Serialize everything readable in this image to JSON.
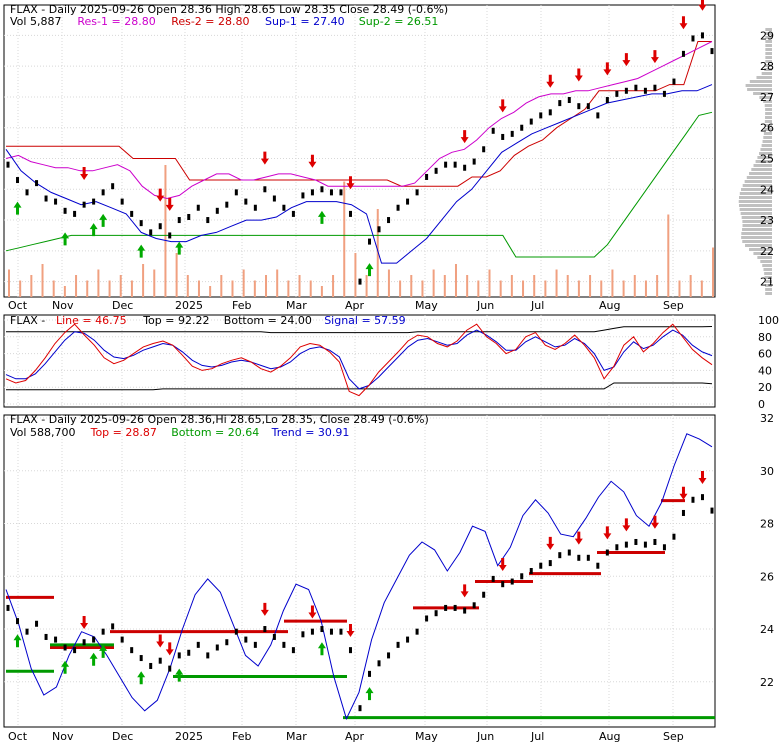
{
  "colors": {
    "resistance": "#cc0000",
    "support": "#009900",
    "sup1": "#0000cc",
    "res_line": "#cc00cc",
    "volume": "#f0a080",
    "profile": "#c0c0c0",
    "down_arrow": "#dd0000",
    "up_arrow": "#00aa00",
    "signal": "#dd0000",
    "line": "#000000",
    "trend": "#0000cc"
  },
  "chart_data": [
    {
      "type": "line",
      "title": "FLAX - Daily 2025-09-26 Open 28.36   High 28.65   Low 28.35   Close 28.49 (-0.6%)",
      "legend": [
        {
          "label": "Vol 5,887",
          "color": "#000000"
        },
        {
          "label": "Res-1 = 28.80",
          "color": "#cc00cc"
        },
        {
          "label": "Res-2 = 28.80",
          "color": "#cc0000"
        },
        {
          "label": "Sup-1 = 27.40",
          "color": "#0000cc"
        },
        {
          "label": "Sup-2 = 26.51",
          "color": "#009900"
        }
      ],
      "x_months": [
        "Oct",
        "Nov",
        "Dec",
        "2025",
        "Feb",
        "Mar",
        "Apr",
        "May",
        "Jun",
        "Jul",
        "Aug",
        "Sep"
      ],
      "y_ticks": [
        "21",
        "22",
        "23",
        "24",
        "25",
        "26",
        "27",
        "28",
        "29"
      ],
      "ylim": [
        20.5,
        29.5
      ],
      "close_series": [
        24.8,
        24.3,
        23.9,
        24.2,
        23.7,
        23.6,
        23.3,
        23.2,
        23.5,
        23.6,
        23.9,
        24.1,
        23.6,
        23.2,
        22.9,
        22.6,
        22.8,
        22.5,
        23.0,
        23.1,
        23.4,
        23.0,
        23.3,
        23.5,
        23.9,
        23.6,
        23.4,
        24.0,
        23.7,
        23.4,
        23.2,
        23.8,
        23.9,
        24.0,
        23.9,
        23.9,
        23.2,
        21.0,
        22.3,
        22.7,
        23.0,
        23.4,
        23.6,
        23.9,
        24.4,
        24.6,
        24.8,
        24.8,
        24.7,
        24.9,
        25.3,
        25.9,
        25.7,
        25.8,
        26.0,
        26.2,
        26.4,
        26.5,
        26.8,
        26.9,
        26.7,
        26.7,
        26.4,
        26.9,
        27.1,
        27.2,
        27.3,
        27.2,
        27.3,
        27.1,
        27.5,
        28.4,
        28.9,
        29.0,
        28.49
      ],
      "res1_series": [
        25.0,
        25.1,
        24.9,
        24.8,
        24.7,
        24.7,
        24.6,
        24.6,
        24.7,
        24.8,
        24.6,
        24.1,
        23.8,
        23.7,
        23.8,
        24.1,
        24.3,
        24.5,
        24.5,
        24.3,
        24.3,
        24.4,
        24.5,
        24.5,
        24.4,
        24.3,
        24.1,
        24.1,
        24.1,
        24.1,
        24.1,
        24.1,
        24.1,
        24.2,
        24.6,
        25.0,
        25.2,
        25.3,
        25.6,
        26.0,
        26.3,
        26.5,
        26.8,
        27.0,
        27.1,
        27.1,
        27.2,
        27.2,
        27.3,
        27.4,
        27.5,
        27.6,
        27.8,
        28.0,
        28.2,
        28.4,
        28.6,
        28.8
      ],
      "sup1_series": [
        25.3,
        24.6,
        24.2,
        23.9,
        23.7,
        23.5,
        23.6,
        23.4,
        23.2,
        22.6,
        22.4,
        22.3,
        22.3,
        22.5,
        22.6,
        22.8,
        23.0,
        23.0,
        23.1,
        23.4,
        23.6,
        23.6,
        23.6,
        23.5,
        23.2,
        21.6,
        21.6,
        22.0,
        22.4,
        23.0,
        23.6,
        24.0,
        24.6,
        25.2,
        25.5,
        25.8,
        26.0,
        26.2,
        26.4,
        26.6,
        26.8,
        26.9,
        27.0,
        27.1,
        27.1,
        27.2,
        27.2,
        27.4
      ],
      "volume_series": [
        0.5,
        0.3,
        0.4,
        0.6,
        0.3,
        0.2,
        0.4,
        0.3,
        0.5,
        0.3,
        0.4,
        0.3,
        0.6,
        0.5,
        2.4,
        0.8,
        0.4,
        0.3,
        0.2,
        0.4,
        0.3,
        0.5,
        0.3,
        0.4,
        0.5,
        0.3,
        0.4,
        0.3,
        0.2,
        0.4,
        2.1,
        0.8,
        0.4,
        1.6,
        0.5,
        0.3,
        0.4,
        0.3,
        0.5,
        0.4,
        0.6,
        0.4,
        0.3,
        0.5,
        0.3,
        0.4,
        0.3,
        0.4,
        0.3,
        0.5,
        0.4,
        0.3,
        0.4,
        0.3,
        0.5,
        0.3,
        0.4,
        0.3,
        0.4,
        1.5,
        0.3,
        0.4,
        0.3,
        0.9
      ]
    },
    {
      "type": "line",
      "title": "FLAX - Line = 46.75, Top = 92.22, Bottom = 24.00, Signal = 57.59",
      "legend": [
        {
          "label": "Line = 46.75",
          "color": "#dd0000"
        },
        {
          "label": "Top = 92.22",
          "color": "#000000"
        },
        {
          "label": "Bottom = 24.00",
          "color": "#000000"
        },
        {
          "label": "Signal = 57.59",
          "color": "#0000cc"
        }
      ],
      "y_ticks": [
        "0",
        "20",
        "40",
        "60",
        "80",
        "100"
      ],
      "ylim": [
        0,
        100
      ],
      "line_series": [
        30,
        25,
        28,
        40,
        55,
        72,
        85,
        95,
        82,
        70,
        55,
        48,
        52,
        60,
        68,
        72,
        75,
        70,
        58,
        45,
        40,
        42,
        48,
        52,
        55,
        50,
        42,
        38,
        45,
        55,
        68,
        72,
        70,
        62,
        50,
        15,
        10,
        22,
        38,
        50,
        62,
        75,
        82,
        80,
        72,
        68,
        75,
        88,
        95,
        80,
        72,
        60,
        65,
        80,
        85,
        70,
        65,
        72,
        82,
        70,
        55,
        30,
        45,
        70,
        80,
        62,
        72,
        85,
        95,
        80,
        65,
        55,
        46.75
      ],
      "signal_series": [
        35,
        30,
        30,
        36,
        48,
        62,
        76,
        86,
        84,
        76,
        64,
        56,
        54,
        58,
        64,
        68,
        72,
        70,
        62,
        52,
        46,
        44,
        46,
        50,
        52,
        50,
        46,
        42,
        44,
        50,
        60,
        66,
        68,
        64,
        56,
        30,
        18,
        22,
        32,
        44,
        56,
        68,
        76,
        78,
        74,
        70,
        72,
        82,
        88,
        82,
        74,
        64,
        64,
        74,
        80,
        74,
        68,
        70,
        78,
        72,
        60,
        40,
        44,
        62,
        74,
        66,
        70,
        80,
        88,
        82,
        70,
        62,
        57.59
      ],
      "top_series": [
        86,
        86,
        86,
        86,
        86,
        86,
        86,
        86,
        86,
        86,
        86,
        86,
        86,
        86,
        86,
        86,
        86,
        86,
        86,
        86,
        86,
        86,
        86,
        86,
        86,
        86,
        86,
        85,
        85,
        85,
        85,
        85,
        85,
        85,
        85,
        85,
        85,
        85,
        85,
        85,
        85,
        85,
        86,
        86,
        86,
        86,
        86,
        86,
        86,
        86,
        86,
        86,
        86,
        86,
        86,
        86,
        86,
        86,
        86,
        86,
        86,
        88,
        90,
        92,
        92,
        92,
        92,
        92,
        92,
        92,
        92,
        92,
        92.22
      ],
      "bottom_series": [
        17,
        17,
        17,
        17,
        17,
        17,
        17,
        17,
        17,
        17,
        17,
        17,
        17,
        17,
        17,
        17,
        18,
        18,
        18,
        18,
        18,
        18,
        18,
        18,
        18,
        18,
        18,
        18,
        18,
        18,
        18,
        18,
        18,
        18,
        18,
        18,
        18,
        18,
        18,
        18,
        18,
        18,
        18,
        18,
        18,
        18,
        18,
        18,
        18,
        18,
        18,
        18,
        18,
        18,
        18,
        18,
        18,
        18,
        18,
        18,
        18,
        18,
        25,
        25,
        25,
        25,
        25,
        25,
        25,
        25,
        25,
        25,
        24
      ]
    },
    {
      "type": "line",
      "title": "FLAX - Daily 2025-09-26 Open 28.36,Hi 28.65,Lo 28.35, Close 28.49 (-0.6%)",
      "legend": [
        {
          "label": "Vol 588,700",
          "color": "#000000"
        },
        {
          "label": "Top = 28.87",
          "color": "#dd0000"
        },
        {
          "label": "Bottom = 20.64",
          "color": "#009900"
        },
        {
          "label": "Trend = 30.91",
          "color": "#0000cc"
        }
      ],
      "y_ticks": [
        "22",
        "24",
        "26",
        "28",
        "30",
        "32"
      ],
      "ylim": [
        20.4,
        32
      ],
      "trend_series": [
        25.5,
        24.2,
        22.5,
        21.5,
        21.8,
        23.0,
        23.9,
        23.7,
        23.0,
        22.2,
        21.4,
        20.9,
        21.3,
        22.5,
        24.0,
        25.3,
        25.9,
        25.4,
        24.2,
        23.0,
        22.6,
        23.4,
        24.7,
        25.7,
        25.5,
        24.3,
        22.2,
        20.6,
        21.6,
        23.6,
        25.0,
        25.9,
        26.8,
        27.3,
        27.0,
        26.2,
        26.9,
        27.9,
        27.7,
        26.4,
        27.1,
        28.3,
        28.9,
        28.4,
        27.6,
        27.5,
        28.2,
        29.0,
        29.6,
        29.2,
        28.3,
        27.9,
        28.8,
        30.2,
        31.4,
        31.2,
        30.91
      ],
      "resistance_levels": [
        {
          "from": "Oct",
          "to": "Nov",
          "value": 25.2
        },
        {
          "from": "Nov",
          "to": "Dec",
          "value": 23.3
        },
        {
          "from": "Dec",
          "to": "Feb",
          "value": 23.9
        },
        {
          "from": "Feb",
          "to": "Mar",
          "value": 23.9
        },
        {
          "from": "Mar",
          "to": "Apr",
          "value": 24.3
        },
        {
          "from": "May",
          "to": "Jun",
          "value": 24.8
        },
        {
          "from": "Jun",
          "to": "Jul",
          "value": 25.8
        },
        {
          "from": "Jul",
          "to": "Aug",
          "value": 26.1
        },
        {
          "from": "Aug",
          "to": "Sep",
          "value": 26.9
        },
        {
          "from": "Sep",
          "to": "end",
          "value": 28.87
        }
      ],
      "support_levels": [
        {
          "from": "Oct",
          "to": "Nov",
          "value": 22.4
        },
        {
          "from": "Nov",
          "to": "Dec",
          "value": 23.4
        },
        {
          "from": "2025",
          "to": "Apr",
          "value": 22.2
        },
        {
          "from": "Apr",
          "to": "end",
          "value": 20.64
        }
      ]
    }
  ]
}
